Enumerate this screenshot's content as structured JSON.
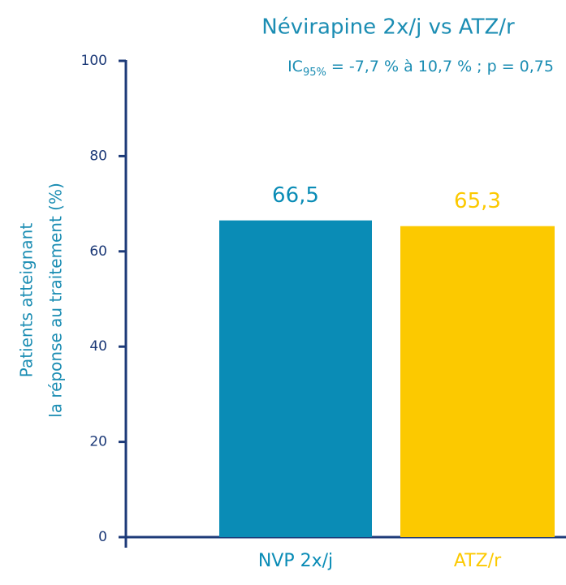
{
  "chart_data": {
    "type": "bar",
    "title": "Névirapine 2x/j vs ATZ/r",
    "subtitle": [
      "IC",
      "95%",
      " = -7,7 % à 10,7 % ; p = 0,75"
    ],
    "y_label": [
      "Patients atteignant",
      "la réponse au traitement (%)"
    ],
    "categories": [
      "NVP 2x/j",
      "ATZ/r"
    ],
    "values": [
      66.5,
      65.3
    ],
    "value_labels": [
      "66,5",
      "65,3"
    ],
    "colors": [
      "#0a8cb6",
      "#fcc900"
    ],
    "ylim": [
      0,
      100
    ],
    "yticks": [
      0,
      20,
      40,
      60,
      80,
      100
    ]
  }
}
